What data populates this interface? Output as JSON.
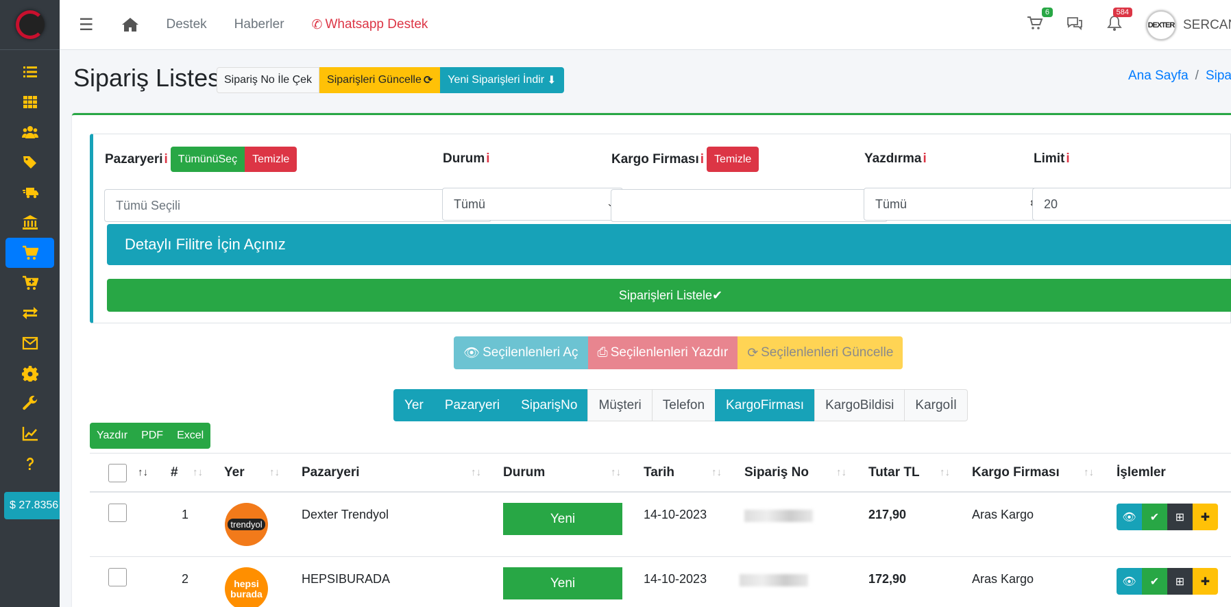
{
  "sidebar": {
    "balance": "$ 27.8356",
    "icons": [
      "list-icon",
      "grid-icon",
      "users-icon",
      "tags-icon",
      "truck-icon",
      "bank-icon",
      "cart-icon",
      "cart-plus-icon",
      "exchange-icon",
      "envelope-icon",
      "gear-icon",
      "wrench-icon",
      "chart-line-icon",
      "question-icon"
    ],
    "active_index": 6
  },
  "navbar": {
    "links": [
      "Destek",
      "Haberler"
    ],
    "whatsapp": "Whatsapp Destek",
    "cart_badge": "6",
    "bell_badge": "584",
    "avatar_text": "DEXTER",
    "user_name": "SERCAN"
  },
  "header": {
    "title": "Sipariş Listesi",
    "btn_fetch": "Sipariş No İle Çek",
    "btn_update": "Siparişleri Güncelle",
    "btn_download": "Yeni Siparişleri İndir",
    "breadcrumb_home": "Ana Sayfa",
    "breadcrumb_current": "Sipariş Listesi"
  },
  "filters": {
    "pazaryeri_label": "Pazaryeri",
    "select_all": "TümünüSeç",
    "clear": "Temizle",
    "pazaryeri_placeholder": "Tümü Seçili",
    "durum_label": "Durum",
    "durum_value": "Tümü",
    "kargo_label": "Kargo Firması",
    "kargo_clear": "Temizle",
    "yazdirma_label": "Yazdırma",
    "yazdirma_value": "Tümü",
    "limit_label": "Limit",
    "limit_value": "20",
    "detail_toggle": "Detaylı Filitre İçin Açınız",
    "list_button": "Siparişleri Listele"
  },
  "selection": {
    "open": "Seçilenlenleri Aç",
    "print": "Seçilenlenleri Yazdır",
    "update": "Seçilenlenleri Güncelle"
  },
  "column_toggles": [
    {
      "label": "Yer",
      "on": true
    },
    {
      "label": "Pazaryeri",
      "on": true
    },
    {
      "label": "SiparişNo",
      "on": true
    },
    {
      "label": "Müşteri",
      "on": false
    },
    {
      "label": "Telefon",
      "on": false
    },
    {
      "label": "KargoFirması",
      "on": true
    },
    {
      "label": "KargoBildisi",
      "on": false
    },
    {
      "label": "Kargoİl",
      "on": false
    }
  ],
  "export": [
    "Yazdır",
    "PDF",
    "Excel"
  ],
  "table": {
    "headers": {
      "num": "#",
      "yer": "Yer",
      "pazaryeri": "Pazaryeri",
      "durum": "Durum",
      "tarih": "Tarih",
      "siparis_no": "Sipariş No",
      "tutar": "Tutar TL",
      "kargo": "Kargo Firması",
      "islemler": "İşlemler"
    },
    "rows": [
      {
        "num": "1",
        "logo": "trendyol",
        "pazaryeri": "Dexter Trendyol",
        "durum": "Yeni",
        "tarih": "14-10-2023",
        "tutar": "217,90",
        "kargo": "Aras Kargo"
      },
      {
        "num": "2",
        "logo": "hepsi burada",
        "pazaryeri": "HEPSIBURADA",
        "durum": "Yeni",
        "tarih": "14-10-2023",
        "tutar": "172,90",
        "kargo": "Aras Kargo"
      }
    ]
  }
}
